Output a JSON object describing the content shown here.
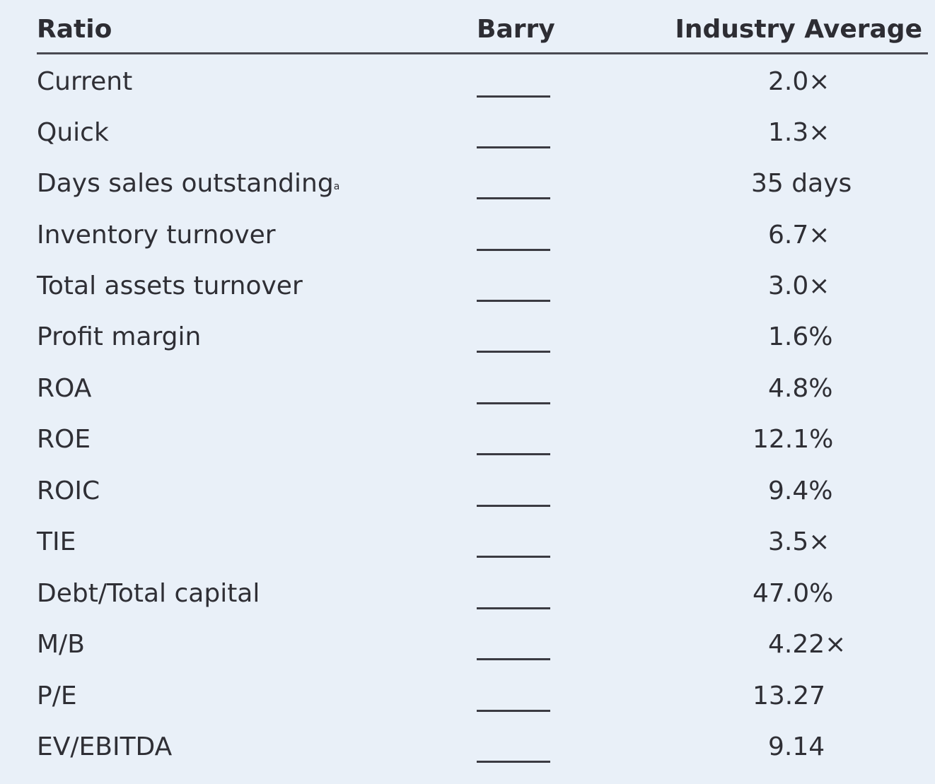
{
  "headers": {
    "ratio": "Ratio",
    "barry": "Barry",
    "industry_average": "Industry Average"
  },
  "rows": [
    {
      "label": "Current",
      "value": "2.0×"
    },
    {
      "label": "Quick",
      "value": "1.3×"
    },
    {
      "label": "Days sales outstanding",
      "footnote": "a",
      "value": "35 days"
    },
    {
      "label": "Inventory turnover",
      "value": "6.7×"
    },
    {
      "label": "Total assets turnover",
      "value": "3.0×"
    },
    {
      "label": "Profit margin",
      "value": "1.6%"
    },
    {
      "label": "ROA",
      "value": "4.8%"
    },
    {
      "label": "ROE",
      "value": "12.1%"
    },
    {
      "label": "ROIC",
      "value": "9.4%"
    },
    {
      "label": "TIE",
      "value": "3.5×"
    },
    {
      "label": "Debt/Total capital",
      "value": "47.0%"
    },
    {
      "label": "M/B",
      "value": "4.22×"
    },
    {
      "label": "P/E",
      "value": "13.27"
    },
    {
      "label": "EV/EBITDA",
      "value": "9.14"
    }
  ]
}
